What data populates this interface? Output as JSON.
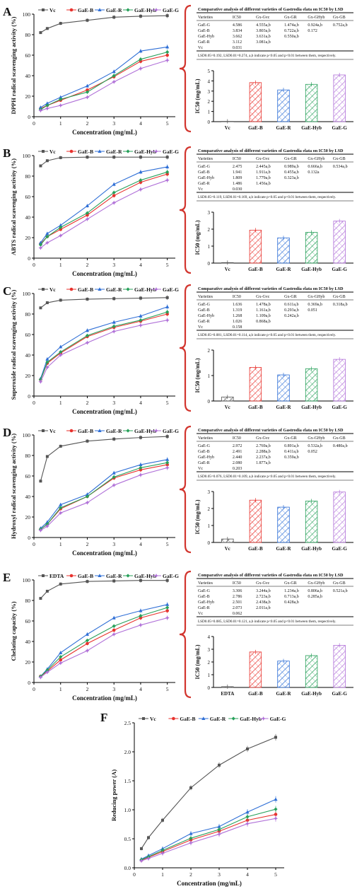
{
  "figure": {
    "x_label": "Concentration (mg/mL)",
    "ic_ylabel": "IC50 (mg/mL)",
    "table_title": "Comparative analysis of different varieties of Gastrodia elata on IC50 by LSD",
    "series_colors": {
      "Vc": "#555555",
      "EDTA": "#555555",
      "GaE-B": "#e8322d",
      "GaE-R": "#2f6fd6",
      "GaE-Hyb": "#27a05a",
      "GaE-G": "#b070d8"
    },
    "accent_red": "#d2352e"
  },
  "chart_data": [
    {
      "panel": "A",
      "type": "line",
      "ylabel": "DPPH radical scavenging activity (%)",
      "xlabel": "Concentration (mg/mL)",
      "x": [
        0.25,
        0.5,
        1,
        2,
        3,
        4,
        5
      ],
      "xlim": [
        0,
        5.3
      ],
      "xticks": [
        0,
        1,
        2,
        3,
        4,
        5
      ],
      "ylim": [
        0,
        100
      ],
      "yticks": [
        0,
        20,
        40,
        60,
        80,
        100
      ],
      "legend": [
        "Vc",
        "GaE-B",
        "GaE-R",
        "GaE-Hyb",
        "GaE-G"
      ],
      "series": [
        {
          "name": "Vc",
          "values": [
            82,
            86,
            91,
            94,
            97,
            98,
            98.5
          ]
        },
        {
          "name": "GaE-B",
          "values": [
            8,
            11,
            16,
            26,
            39,
            54,
            60
          ]
        },
        {
          "name": "GaE-R",
          "values": [
            9,
            13,
            19,
            30,
            44,
            64,
            68
          ]
        },
        {
          "name": "GaE-Hyb",
          "values": [
            7,
            11,
            17,
            24,
            40,
            56,
            63
          ]
        },
        {
          "name": "GaE-G",
          "values": [
            6,
            8,
            11,
            19,
            34,
            47,
            55
          ]
        }
      ],
      "ic_bars": {
        "categories": [
          "Vc",
          "GaE-B",
          "GaE-R",
          "GaE-Hyb",
          "GaE-G"
        ],
        "values": [
          0.031,
          3.834,
          3.112,
          3.662,
          4.586
        ],
        "ylim": [
          0,
          5
        ],
        "yticks": [
          0,
          1,
          2,
          3,
          4,
          5
        ]
      },
      "table": {
        "header": [
          "Varieties",
          "IC50",
          "Gx-Gvc",
          "Gx-GR",
          "Gx-GHyb",
          "Gx-GB"
        ],
        "rows": [
          [
            "GaE-G",
            "4.586",
            "4.555a,b",
            "1.474a,b",
            "0.924a,b",
            "0.752a,b"
          ],
          [
            "GaE-B",
            "3.834",
            "3.803a,b",
            "0.722a,b",
            "0.172",
            ""
          ],
          [
            "GaE-Hyb",
            "3.662",
            "3.631a,b",
            "0.550a,b",
            "",
            ""
          ],
          [
            "GaE-R",
            "3.112",
            "3.081a,b",
            "",
            "",
            ""
          ],
          [
            "Vc",
            "0.031",
            "",
            "",
            "",
            ""
          ]
        ],
        "note": "LSD0.05=0.192, LSD0.01=0.274, a,b indicate p<0.05 and p<0.01 between them, respectively."
      }
    },
    {
      "panel": "B",
      "type": "line",
      "ylabel": "ABTS radical scavenging activity (%)",
      "xlabel": "Concentration (mg/mL)",
      "x": [
        0.25,
        0.5,
        1,
        2,
        3,
        4,
        5
      ],
      "xlim": [
        0,
        5.3
      ],
      "xticks": [
        0,
        1,
        2,
        3,
        4,
        5
      ],
      "ylim": [
        0,
        100
      ],
      "yticks": [
        0,
        20,
        40,
        60,
        80,
        100
      ],
      "legend": [
        "Vc",
        "GaE-B",
        "GaE-R",
        "GaE-Hyb",
        "GaE-G"
      ],
      "series": [
        {
          "name": "Vc",
          "values": [
            90,
            95,
            98,
            98.5,
            98.5,
            98.5,
            98.5
          ]
        },
        {
          "name": "GaE-B",
          "values": [
            14,
            21,
            28,
            42,
            61,
            74,
            82
          ]
        },
        {
          "name": "GaE-R",
          "values": [
            15,
            24,
            32,
            51,
            72,
            84,
            89
          ]
        },
        {
          "name": "GaE-Hyb",
          "values": [
            13,
            21,
            30,
            44,
            64,
            76,
            84
          ]
        },
        {
          "name": "GaE-G",
          "values": [
            10,
            15,
            22,
            38,
            54,
            67,
            76
          ]
        }
      ],
      "ic_bars": {
        "categories": [
          "Vc",
          "GaE-B",
          "GaE-R",
          "GaE-Hyb",
          "GaE-G"
        ],
        "values": [
          0.03,
          1.941,
          1.486,
          1.809,
          2.475
        ],
        "ylim": [
          0,
          3
        ],
        "yticks": [
          0,
          1,
          2,
          3
        ]
      },
      "table": {
        "header": [
          "Varieties",
          "IC50",
          "Gx-Gvc",
          "Gx-GR",
          "Gx-GHyb",
          "Gx-GB"
        ],
        "rows": [
          [
            "GaE-G",
            "2.475",
            "2.445a,b",
            "0.989a,b",
            "0.666a,b",
            "0.534a,b"
          ],
          [
            "GaE-B",
            "1.941",
            "1.911a,b",
            "0.455a,b",
            "0.132a",
            ""
          ],
          [
            "GaE-Hyb",
            "1.809",
            "1.779a,b",
            "0.323a,b",
            "",
            ""
          ],
          [
            "GaE-R",
            "1.486",
            "1.456a,b",
            "",
            "",
            ""
          ],
          [
            "Vc",
            "0.030",
            "",
            "",
            "",
            ""
          ]
        ],
        "note": "LSD0.05=0.119, LSD0.01=0.169, a,b indicate p<0.05 and p<0.01 between them, respectively."
      }
    },
    {
      "panel": "C",
      "type": "line",
      "ylabel": "Superoxide radical scavenging activity (%)",
      "xlabel": "Concentration (mg/mL)",
      "x": [
        0.25,
        0.5,
        1,
        2,
        3,
        4,
        5
      ],
      "xlim": [
        0,
        5.3
      ],
      "xticks": [
        0,
        1,
        2,
        3,
        4,
        5
      ],
      "ylim": [
        0,
        100
      ],
      "yticks": [
        0,
        20,
        40,
        60,
        80,
        100
      ],
      "legend": [
        "Vc",
        "GaE-B",
        "GaE-R",
        "GaE-Hyb",
        "GaE-G"
      ],
      "series": [
        {
          "name": "Vc",
          "values": [
            86,
            91,
            93.5,
            94.5,
            95,
            95.5,
            96
          ]
        },
        {
          "name": "GaE-B",
          "values": [
            16,
            32,
            42,
            58,
            67,
            73,
            80
          ]
        },
        {
          "name": "GaE-R",
          "values": [
            17,
            36,
            48,
            64,
            72,
            78,
            87
          ]
        },
        {
          "name": "GaE-Hyb",
          "values": [
            16,
            33,
            43,
            59,
            68,
            74,
            82
          ]
        },
        {
          "name": "GaE-G",
          "values": [
            14,
            28,
            40,
            52,
            63,
            69,
            74
          ]
        }
      ],
      "ic_bars": {
        "categories": [
          "Vc",
          "GaE-B",
          "GaE-R",
          "GaE-Hyb",
          "GaE-G"
        ],
        "values": [
          0.158,
          1.319,
          1.026,
          1.268,
          1.636
        ],
        "ylim": [
          0,
          2
        ],
        "yticks": [
          0,
          1,
          2
        ]
      },
      "table": {
        "header": [
          "Varieties",
          "IC50",
          "Gx-Gvc",
          "Gx-GR",
          "Gx-GHyb",
          "Gx-GB"
        ],
        "rows": [
          [
            "GaE-G",
            "1.636",
            "1.478a,b",
            "0.611a,b",
            "0.369a,b",
            "0.318a,b"
          ],
          [
            "GaE-B",
            "1.319",
            "1.161a,b",
            "0.293a,b",
            "0.051",
            ""
          ],
          [
            "GaE-Hyb",
            "1.268",
            "1.109a,b",
            "0.242a,b",
            "",
            ""
          ],
          [
            "GaE-R",
            "1.026",
            "0.868a,b",
            "",
            "",
            ""
          ],
          [
            "Vc",
            "0.158",
            "",
            "",
            "",
            ""
          ]
        ],
        "note": "LSD0.05=0.081, LSD0.01=0.114, a,b indicate p<0.05 and p<0.01 between them, respectively."
      }
    },
    {
      "panel": "D",
      "type": "line",
      "ylabel": "Hydroxyl radical scavenging activity (%)",
      "xlabel": "Concentration (mg/mL)",
      "x": [
        0.25,
        0.5,
        1,
        2,
        3,
        4,
        5
      ],
      "xlim": [
        0,
        5.3
      ],
      "xticks": [
        0,
        1,
        2,
        3,
        4,
        5
      ],
      "ylim": [
        0,
        100
      ],
      "yticks": [
        0,
        20,
        40,
        60,
        80,
        100
      ],
      "legend": [
        "Vc",
        "GaE-B",
        "GaE-R",
        "GaE-Hyb",
        "GaE-G"
      ],
      "series": [
        {
          "name": "Vc",
          "values": [
            55,
            79,
            89,
            94,
            96,
            97.5,
            98.5
          ]
        },
        {
          "name": "GaE-B",
          "values": [
            8,
            13,
            28,
            40,
            58,
            66,
            71
          ]
        },
        {
          "name": "GaE-R",
          "values": [
            9,
            15,
            32,
            42,
            63,
            71,
            76
          ]
        },
        {
          "name": "GaE-Hyb",
          "values": [
            8,
            13,
            29,
            40,
            59,
            68,
            73
          ]
        },
        {
          "name": "GaE-G",
          "values": [
            7,
            11,
            24,
            34,
            51,
            61,
            68
          ]
        }
      ],
      "ic_bars": {
        "categories": [
          "Vc",
          "GaE-B",
          "GaE-R",
          "GaE-Hyb",
          "GaE-G"
        ],
        "values": [
          0.203,
          2.491,
          2.08,
          2.44,
          2.972
        ],
        "ylim": [
          0,
          3
        ],
        "yticks": [
          0,
          1,
          2,
          3
        ]
      },
      "table": {
        "header": [
          "Varieties",
          "IC50",
          "Gx-Gvc",
          "Gx-GR",
          "Gx-GHyb",
          "Gx-GB"
        ],
        "rows": [
          [
            "GaE-G",
            "2.972",
            "2.769a,b",
            "0.891a,b",
            "0.532a,b",
            "0.480a,b"
          ],
          [
            "GaE-B",
            "2.491",
            "2.288a,b",
            "0.411a,b",
            "0.052",
            ""
          ],
          [
            "GaE-Hyb",
            "2.440",
            "2.237a,b",
            "0.359a,b",
            "",
            ""
          ],
          [
            "GaE-R",
            "2.080",
            "1.877a,b",
            "",
            "",
            ""
          ],
          [
            "Vc",
            "0.203",
            "",
            "",
            "",
            ""
          ]
        ],
        "note": "LSD0.05=0.076, LSD0.01=0.109, a,b indicate p<0.05 and p<0.01 between them, respectively."
      }
    },
    {
      "panel": "E",
      "type": "line",
      "ylabel": "Chelating capacity (%)",
      "xlabel": "Concentration (mg/mL)",
      "x": [
        0.25,
        0.5,
        1,
        2,
        3,
        4,
        5
      ],
      "xlim": [
        0,
        5.3
      ],
      "xticks": [
        0,
        1,
        2,
        3,
        4,
        5
      ],
      "ylim": [
        0,
        100
      ],
      "yticks": [
        0,
        20,
        40,
        60,
        80,
        100
      ],
      "legend": [
        "EDTA",
        "GaE-B",
        "GaE-R",
        "GaE-Hyb",
        "GaE-G"
      ],
      "series": [
        {
          "name": "EDTA",
          "values": [
            82,
            89,
            96,
            98.5,
            99,
            99.5,
            99.5
          ]
        },
        {
          "name": "GaE-B",
          "values": [
            6,
            11,
            22,
            38,
            51,
            63,
            70
          ]
        },
        {
          "name": "GaE-R",
          "values": [
            6,
            13,
            29,
            47,
            63,
            70,
            76
          ]
        },
        {
          "name": "GaE-Hyb",
          "values": [
            6,
            12,
            25,
            41,
            55,
            65,
            73
          ]
        },
        {
          "name": "GaE-G",
          "values": [
            5,
            10,
            19,
            31,
            47,
            56,
            63
          ]
        }
      ],
      "ic_bars": {
        "categories": [
          "EDTA",
          "GaE-B",
          "GaE-R",
          "GaE-Hyb",
          "GaE-G"
        ],
        "values": [
          0.062,
          2.786,
          2.073,
          2.501,
          3.306
        ],
        "ylim": [
          0,
          4
        ],
        "yticks": [
          0,
          1,
          2,
          3,
          4
        ]
      },
      "table": {
        "header": [
          "Varieties",
          "IC50",
          "Gx-Gvc",
          "Gx-GR",
          "Gx-GHyb",
          "Gx-GB"
        ],
        "rows": [
          [
            "GaE-G",
            "3.306",
            "3.244a,b",
            "1.234a,b",
            "0.806a,b",
            "0.521a,b"
          ],
          [
            "GaE-B",
            "2.786",
            "2.723a,b",
            "0.713a,b",
            "0.285a,b",
            ""
          ],
          [
            "GaE-Hyb",
            "2.501",
            "2.438a,b",
            "0.428a,b",
            "",
            ""
          ],
          [
            "GaE-R",
            "2.073",
            "2.011a,b",
            "",
            "",
            ""
          ],
          [
            "Vc",
            "0.062",
            "",
            "",
            "",
            ""
          ]
        ],
        "note": "LSD0.05=0.085, LSD0.01=0.121, a,b indicate p<0.05 and p<0.01 between them, respectively."
      }
    },
    {
      "panel": "F",
      "type": "line",
      "ylabel": "Reducing power (A)",
      "xlabel": "Concentration (mg/mL)",
      "x": [
        0.25,
        0.5,
        1,
        2,
        3,
        4,
        5
      ],
      "xlim": [
        0,
        5.3
      ],
      "xticks": [
        0,
        1,
        2,
        3,
        4,
        5
      ],
      "ylim": [
        0,
        2.5
      ],
      "yticks": [
        0.0,
        0.5,
        1.0,
        1.5,
        2.0,
        2.5
      ],
      "ytick_labels": [
        "0.0",
        "0.5",
        "1.0",
        "1.5",
        "2.0",
        "2.5"
      ],
      "legend": [
        "Vc",
        "GaE-B",
        "GaE-R",
        "GaE-Hyb",
        "GaE-G"
      ],
      "series": [
        {
          "name": "Vc",
          "values": [
            0.33,
            0.52,
            0.82,
            1.38,
            1.77,
            2.05,
            2.25
          ]
        },
        {
          "name": "GaE-B",
          "values": [
            0.13,
            0.18,
            0.28,
            0.48,
            0.63,
            0.82,
            0.92
          ]
        },
        {
          "name": "GaE-R",
          "values": [
            0.15,
            0.21,
            0.33,
            0.59,
            0.71,
            0.96,
            1.18
          ]
        },
        {
          "name": "GaE-Hyb",
          "values": [
            0.14,
            0.19,
            0.3,
            0.51,
            0.66,
            0.88,
            1.01
          ]
        },
        {
          "name": "GaE-G",
          "values": [
            0.12,
            0.16,
            0.25,
            0.43,
            0.58,
            0.76,
            0.85
          ]
        }
      ]
    }
  ]
}
